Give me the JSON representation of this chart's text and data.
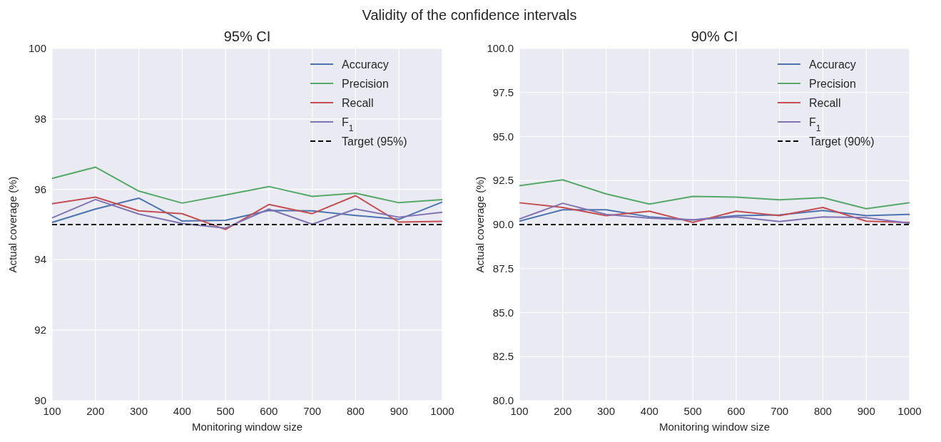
{
  "chart_data": [
    {
      "type": "line",
      "title": "95% CI",
      "annotations": [
        "Validity of the confidence intervals"
      ],
      "xlabel": "Monitoring window size",
      "ylabel": "Actual coverage (%)",
      "x": [
        100,
        200,
        300,
        400,
        500,
        600,
        700,
        800,
        900,
        1000
      ],
      "series": [
        {
          "name": "Accuracy",
          "color": "#4c72b0",
          "values": [
            95.06,
            95.44,
            95.75,
            95.1,
            95.12,
            95.4,
            95.39,
            95.26,
            95.15,
            95.64
          ]
        },
        {
          "name": "Precision",
          "color": "#55a868",
          "values": [
            96.31,
            96.63,
            95.95,
            95.61,
            95.84,
            96.08,
            95.8,
            95.89,
            95.62,
            95.71
          ]
        },
        {
          "name": "Recall",
          "color": "#c44e52",
          "values": [
            95.59,
            95.78,
            95.39,
            95.31,
            94.86,
            95.57,
            95.31,
            95.82,
            95.07,
            95.09
          ]
        },
        {
          "name": "F$_{1}$",
          "color": "#8172b2",
          "values": [
            95.19,
            95.71,
            95.3,
            95.03,
            94.9,
            95.44,
            95.01,
            95.44,
            95.21,
            95.35
          ]
        }
      ],
      "ref_lines": [
        {
          "axis": "y",
          "value": 95,
          "label": "Target (95%)",
          "color": "#000000",
          "line_style": "dashed"
        }
      ],
      "xlim": [
        100,
        1000
      ],
      "xticks": [
        100,
        200,
        300,
        400,
        500,
        600,
        700,
        800,
        900,
        1000
      ],
      "ylim": [
        90,
        100
      ],
      "yticks": [
        90,
        92,
        94,
        96,
        98,
        100
      ],
      "grid": true,
      "legend": "top right",
      "line_style": "solid",
      "marker": "none"
    },
    {
      "type": "line",
      "title": "90% CI",
      "xlabel": "Monitoring window size",
      "ylabel": "Actual coverage (%)",
      "x": [
        100,
        200,
        300,
        400,
        500,
        600,
        700,
        800,
        900,
        1000
      ],
      "series": [
        {
          "name": "Accuracy",
          "color": "#4c72b0",
          "values": [
            90.19,
            90.84,
            90.84,
            90.44,
            90.26,
            90.51,
            90.55,
            90.8,
            90.51,
            90.58
          ]
        },
        {
          "name": "Precision",
          "color": "#55a868",
          "values": [
            92.21,
            92.54,
            91.74,
            91.16,
            91.6,
            91.56,
            91.41,
            91.53,
            90.9,
            91.24
          ]
        },
        {
          "name": "Recall",
          "color": "#c44e52",
          "values": [
            91.24,
            90.97,
            90.51,
            90.76,
            90.12,
            90.76,
            90.51,
            90.97,
            90.19,
            90.12
          ]
        },
        {
          "name": "F$_{1}$",
          "color": "#8172b2",
          "values": [
            90.32,
            91.21,
            90.58,
            90.36,
            90.26,
            90.44,
            90.17,
            90.44,
            90.39,
            90.07
          ]
        }
      ],
      "ref_lines": [
        {
          "axis": "y",
          "value": 90,
          "label": "Target (90%)",
          "color": "#000000",
          "line_style": "dashed"
        }
      ],
      "xlim": [
        100,
        1000
      ],
      "xticks": [
        100,
        200,
        300,
        400,
        500,
        600,
        700,
        800,
        900,
        1000
      ],
      "ylim": [
        80,
        100
      ],
      "yticks": [
        {
          "value": 80,
          "label": "80.0"
        },
        {
          "value": 82.5,
          "label": "82.5"
        },
        {
          "value": 85,
          "label": "85.0"
        },
        {
          "value": 87.5,
          "label": "87.5"
        },
        {
          "value": 90,
          "label": "90.0"
        },
        {
          "value": 92.5,
          "label": "92.5"
        },
        {
          "value": 95,
          "label": "95.0"
        },
        {
          "value": 97.5,
          "label": "97.5"
        },
        {
          "value": 100,
          "label": "100.0"
        }
      ],
      "grid": true,
      "legend": "top right",
      "line_style": "solid",
      "marker": "none"
    }
  ]
}
